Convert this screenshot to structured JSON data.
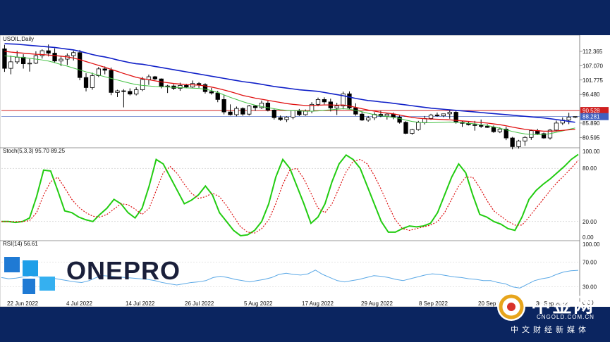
{
  "panel_labels": {
    "price": "USOIL,Daily",
    "stoch": "Stoch(5,3,3) 95.70 89.25",
    "rsi": "RSI(14) 56.61"
  },
  "brand": {
    "logo_text": "ONEPRO",
    "cn_name": "中金网",
    "url": "CNGOLD.COM.CN",
    "cn_sub": "中文财经新媒体"
  },
  "colors": {
    "ma_blue": "#1020c8",
    "ma_red": "#e01010",
    "ma_green": "#40c040",
    "stoch_main": "#22cc11",
    "stoch_signal": "#dd1111",
    "rsi": "#5aa8e6",
    "hline": "#d02020",
    "bid_line": "#4060c0"
  },
  "chart_data": [
    {
      "type": "candlestick",
      "name": "price",
      "title": "USOIL,Daily",
      "x_tick_labels": [
        "22 Jun 2022",
        "4 Jul 2022",
        "14 Jul 2022",
        "26 Jul 2022",
        "5 Aug 2022",
        "17 Aug 2022",
        "29 Aug 2022",
        "8 Sep 2022",
        "20 Sep 2022",
        "30 Sep 2022"
      ],
      "y_tick_labels": [
        "112.365",
        "107.070",
        "101.775",
        "96.480",
        "85.890",
        "80.595"
      ],
      "ylim": [
        77.3,
        117.3
      ],
      "hline_level": 90.528,
      "hline_label": "90.528",
      "bid_level": 88.281,
      "bid_label": "88.281",
      "candles": [
        [
          113.3,
          114.8,
          104.8,
          106.1
        ],
        [
          106.1,
          110.8,
          103.9,
          108.5
        ],
        [
          108.5,
          112.6,
          107.7,
          110.2
        ],
        [
          110.2,
          111.3,
          106.0,
          107.8
        ],
        [
          107.8,
          109.6,
          104.9,
          108.0
        ],
        [
          108.0,
          112.4,
          107.7,
          110.8
        ],
        [
          110.8,
          113.1,
          109.7,
          112.6
        ],
        [
          112.6,
          114.9,
          110.5,
          111.7
        ],
        [
          111.7,
          113.5,
          108.1,
          108.8
        ],
        [
          108.8,
          110.8,
          106.9,
          109.5
        ],
        [
          109.5,
          111.6,
          107.3,
          110.8
        ],
        [
          110.8,
          112.6,
          109.0,
          111.9
        ],
        [
          111.9,
          112.9,
          101.7,
          102.7
        ],
        [
          102.7,
          104.3,
          97.6,
          99.0
        ],
        [
          99.0,
          104.5,
          98.2,
          103.4
        ],
        [
          103.4,
          106.6,
          102.9,
          105.9
        ],
        [
          105.9,
          106.8,
          103.9,
          105.4
        ],
        [
          105.4,
          106.4,
          96.2,
          97.2
        ],
        [
          97.2,
          98.2,
          95.5,
          97.8
        ],
        [
          97.8,
          98.4,
          91.7,
          97.6
        ],
        [
          97.6,
          98.7,
          96.1,
          96.6
        ],
        [
          96.6,
          99.1,
          96.1,
          98.2
        ],
        [
          98.2,
          102.9,
          97.7,
          102.0
        ],
        [
          102.0,
          103.8,
          100.0,
          103.0
        ],
        [
          103.0,
          103.3,
          101.8,
          102.2
        ],
        [
          102.2,
          102.4,
          98.7,
          99.4
        ],
        [
          99.4,
          100.0,
          97.0,
          99.6
        ],
        [
          99.6,
          100.2,
          98.1,
          98.7
        ],
        [
          98.7,
          100.8,
          97.8,
          99.8
        ],
        [
          99.8,
          100.4,
          98.8,
          99.2
        ],
        [
          99.2,
          101.6,
          98.9,
          100.5
        ],
        [
          100.5,
          101.0,
          98.9,
          100.1
        ],
        [
          100.1,
          100.6,
          96.8,
          97.5
        ],
        [
          97.5,
          98.9,
          96.4,
          97.0
        ],
        [
          97.0,
          97.8,
          93.6,
          94.6
        ],
        [
          94.6,
          96.3,
          89.1,
          90.0
        ],
        [
          90.0,
          92.8,
          88.7,
          89.0
        ],
        [
          89.0,
          92.0,
          88.4,
          91.3
        ],
        [
          91.3,
          91.7,
          88.6,
          89.2
        ],
        [
          89.2,
          92.6,
          88.7,
          92.2
        ],
        [
          92.2,
          92.5,
          90.4,
          91.6
        ],
        [
          91.6,
          94.2,
          91.1,
          93.3
        ],
        [
          93.3,
          94.0,
          90.2,
          90.7
        ],
        [
          90.7,
          91.0,
          87.2,
          87.9
        ],
        [
          87.9,
          88.7,
          86.7,
          87.2
        ],
        [
          87.2,
          88.4,
          86.3,
          88.1
        ],
        [
          88.1,
          90.6,
          87.3,
          90.5
        ],
        [
          90.5,
          91.1,
          88.5,
          89.0
        ],
        [
          89.0,
          90.9,
          88.6,
          90.3
        ],
        [
          90.3,
          93.6,
          89.5,
          92.8
        ],
        [
          92.8,
          95.3,
          92.1,
          94.6
        ],
        [
          94.6,
          95.4,
          92.8,
          93.7
        ],
        [
          93.7,
          94.9,
          90.2,
          91.5
        ],
        [
          91.5,
          93.4,
          88.9,
          92.2
        ],
        [
          92.2,
          97.5,
          91.0,
          96.7
        ],
        [
          96.7,
          97.6,
          90.9,
          91.5
        ],
        [
          91.5,
          93.2,
          88.6,
          89.2
        ],
        [
          89.2,
          90.1,
          86.7,
          87.0
        ],
        [
          87.0,
          88.5,
          86.4,
          87.8
        ],
        [
          87.8,
          89.9,
          87.0,
          89.1
        ],
        [
          89.1,
          90.4,
          88.1,
          88.5
        ],
        [
          88.5,
          89.6,
          87.2,
          89.2
        ],
        [
          89.2,
          89.8,
          87.3,
          88.1
        ],
        [
          88.1,
          88.7,
          85.7,
          86.2
        ],
        [
          86.2,
          86.6,
          81.8,
          82.1
        ],
        [
          82.1,
          83.8,
          81.6,
          83.5
        ],
        [
          83.5,
          86.7,
          83.1,
          86.1
        ],
        [
          86.1,
          88.5,
          85.4,
          87.6
        ],
        [
          87.6,
          89.3,
          87.1,
          88.9
        ],
        [
          88.9,
          89.8,
          88.3,
          88.6
        ],
        [
          88.6,
          89.4,
          88.1,
          89.3
        ],
        [
          89.3,
          90.7,
          87.5,
          89.9
        ],
        [
          89.9,
          90.4,
          85.7,
          86.2
        ],
        [
          86.2,
          86.7,
          84.5,
          85.8
        ],
        [
          85.8,
          86.6,
          85.0,
          85.3
        ],
        [
          85.3,
          86.7,
          83.1,
          85.0
        ],
        [
          85.0,
          87.2,
          84.1,
          84.7
        ],
        [
          84.7,
          85.5,
          84.1,
          84.3
        ],
        [
          84.3,
          85.0,
          82.3,
          82.7
        ],
        [
          82.7,
          84.3,
          82.2,
          83.7
        ],
        [
          83.7,
          84.6,
          79.6,
          80.4
        ],
        [
          80.4,
          80.8,
          76.2,
          77.2
        ],
        [
          77.2,
          79.7,
          76.5,
          79.3
        ],
        [
          79.3,
          81.1,
          77.5,
          80.6
        ],
        [
          80.6,
          83.5,
          79.7,
          83.1
        ],
        [
          83.1,
          83.8,
          81.5,
          82.0
        ],
        [
          82.0,
          82.4,
          80.1,
          80.4
        ],
        [
          80.4,
          83.7,
          79.8,
          83.3
        ],
        [
          83.3,
          86.8,
          82.8,
          85.9
        ],
        [
          85.9,
          88.0,
          85.2,
          87.0
        ],
        [
          87.0,
          89.7,
          85.5,
          88.1
        ],
        [
          88.1,
          88.3,
          87.7,
          88.3
        ]
      ],
      "ma_blue": [
        115.2,
        115.1,
        115.0,
        114.8,
        114.6,
        114.4,
        114.2,
        114.0,
        113.8,
        113.5,
        113.2,
        112.9,
        112.4,
        111.8,
        111.2,
        110.7,
        110.3,
        109.8,
        109.2,
        108.7,
        108.2,
        107.8,
        107.6,
        107.2,
        106.8,
        106.4,
        106.0,
        105.6,
        105.2,
        104.8,
        104.4,
        104.0,
        103.6,
        103.2,
        102.8,
        102.4,
        102.0,
        101.6,
        101.2,
        100.9,
        100.6,
        100.2,
        99.8,
        99.4,
        99.1,
        98.8,
        98.5,
        98.2,
        98.0,
        97.8,
        97.6,
        97.2,
        96.8,
        96.4,
        96.0,
        95.5,
        95.0,
        94.6,
        94.2,
        94.0,
        93.7,
        93.5,
        93.2,
        92.9,
        92.6,
        92.3,
        92.0,
        91.7,
        91.4,
        91.2,
        91.0,
        90.8,
        90.6,
        90.4,
        90.2,
        90.0,
        89.8,
        89.6,
        89.4,
        89.2,
        89.0,
        88.8,
        88.6,
        88.4,
        88.2,
        88.0,
        87.8,
        87.5,
        87.2,
        86.9,
        86.5,
        86.2
      ],
      "ma_red": [
        112.4,
        112.1,
        111.9,
        111.7,
        111.5,
        111.3,
        111.2,
        111.0,
        110.8,
        110.6,
        110.3,
        109.9,
        109.3,
        108.6,
        107.9,
        107.2,
        106.5,
        105.7,
        105.0,
        104.2,
        103.5,
        102.8,
        102.3,
        101.9,
        101.5,
        101.1,
        100.8,
        100.5,
        100.3,
        100.1,
        100.0,
        99.9,
        99.6,
        99.2,
        98.7,
        98.1,
        97.5,
        96.8,
        96.1,
        95.6,
        95.1,
        94.7,
        94.3,
        93.9,
        93.5,
        93.1,
        92.8,
        92.6,
        92.4,
        92.4,
        92.5,
        92.6,
        92.6,
        92.5,
        92.6,
        92.2,
        91.7,
        91.2,
        90.7,
        90.3,
        89.9,
        89.6,
        89.3,
        88.9,
        88.4,
        88.0,
        87.7,
        87.5,
        87.4,
        87.3,
        87.2,
        87.1,
        86.9,
        86.7,
        86.5,
        86.3,
        86.1,
        85.9,
        85.6,
        85.3,
        84.9,
        84.4,
        84.0,
        83.6,
        83.3,
        83.1,
        82.9,
        82.9,
        83.0,
        83.2,
        83.4,
        83.6
      ],
      "ma_green": [
        110.7,
        110.5,
        110.3,
        110.1,
        109.8,
        109.5,
        109.2,
        108.8,
        108.2,
        107.5,
        106.9,
        106.2,
        105.5,
        104.8,
        104.2,
        103.6,
        103.0,
        102.4,
        101.8,
        101.2,
        100.6,
        100.1,
        99.8,
        99.6,
        99.4,
        99.3,
        99.2,
        99.1,
        99.0,
        98.9,
        98.8,
        98.7,
        98.4,
        97.9,
        97.2,
        96.3,
        95.4,
        94.6,
        93.8,
        93.1,
        92.5,
        92.0,
        91.6,
        91.2,
        90.8,
        90.6,
        90.5,
        90.4,
        90.3,
        90.3,
        90.4,
        90.6,
        90.8,
        91.0,
        91.2,
        91.0,
        90.6,
        90.1,
        89.5,
        89.0,
        88.6,
        88.3,
        88.0,
        87.6,
        87.0,
        86.5,
        86.2,
        86.0,
        86.0,
        86.1,
        86.2,
        86.3,
        86.2,
        86.0,
        85.8,
        85.6,
        85.4,
        85.0,
        84.5,
        84.0,
        83.4,
        82.8,
        82.3,
        81.9,
        81.7,
        81.6,
        81.7,
        82.0,
        82.5,
        83.0,
        83.6,
        84.1
      ]
    },
    {
      "type": "line",
      "name": "stochastic",
      "title": "Stoch(5,3,3) 95.70 89.25",
      "y_tick_labels": [
        "100.00",
        "80.00",
        "20.00",
        "0.00"
      ],
      "ylim": [
        0,
        100
      ],
      "series": [
        {
          "name": "Stoch(5,3,3) 95.70",
          "values": [
            20,
            20,
            19,
            20,
            24,
            48,
            78,
            77,
            55,
            32,
            30,
            25,
            22,
            20,
            28,
            35,
            45,
            40,
            30,
            24,
            35,
            60,
            90,
            85,
            70,
            55,
            40,
            44,
            50,
            60,
            50,
            30,
            20,
            10,
            4,
            5,
            10,
            20,
            40,
            70,
            90,
            80,
            60,
            40,
            18,
            25,
            40,
            65,
            85,
            95,
            90,
            80,
            60,
            40,
            20,
            8,
            8,
            12,
            15,
            14,
            15,
            18,
            30,
            50,
            70,
            85,
            75,
            50,
            28,
            25,
            20,
            17,
            12,
            10,
            25,
            45,
            55,
            62,
            68,
            75,
            82,
            90,
            95.7
          ]
        },
        {
          "name": "89.25",
          "values": [
            20,
            20,
            20,
            20,
            21,
            30,
            50,
            65,
            70,
            58,
            45,
            36,
            30,
            26,
            25,
            28,
            34,
            40,
            39,
            34,
            28,
            35,
            55,
            75,
            82,
            74,
            62,
            52,
            46,
            48,
            52,
            48,
            38,
            26,
            14,
            8,
            7,
            12,
            22,
            40,
            62,
            78,
            80,
            68,
            52,
            35,
            30,
            40,
            58,
            76,
            88,
            90,
            85,
            72,
            56,
            38,
            22,
            12,
            10,
            12,
            14,
            16,
            20,
            30,
            45,
            60,
            70,
            70,
            58,
            44,
            32,
            26,
            20,
            16,
            16,
            25,
            35,
            45,
            55,
            64,
            72,
            80,
            89.25
          ]
        }
      ]
    },
    {
      "type": "line",
      "name": "rsi",
      "title": "RSI(14) 56.61",
      "y_tick_labels": [
        "100.00",
        "70.00",
        "30.00",
        "0.00"
      ],
      "ylim": [
        0,
        100
      ],
      "series": [
        {
          "name": "RSI(14) 56.61",
          "values": [
            45,
            43,
            44,
            46,
            48,
            46,
            45,
            44,
            42,
            40,
            38,
            37,
            40,
            45,
            48,
            47,
            46,
            45,
            44,
            43,
            42,
            40,
            37,
            35,
            33,
            35,
            37,
            38,
            40,
            45,
            47,
            45,
            42,
            40,
            38,
            40,
            42,
            45,
            50,
            52,
            50,
            49,
            51,
            57,
            50,
            45,
            40,
            38,
            40,
            42,
            45,
            48,
            47,
            45,
            42,
            40,
            43,
            46,
            49,
            51,
            50,
            48,
            46,
            45,
            43,
            42,
            40,
            40,
            37,
            35,
            30,
            28,
            34,
            40,
            43,
            45,
            50,
            54,
            56,
            56.61
          ]
        }
      ]
    }
  ]
}
